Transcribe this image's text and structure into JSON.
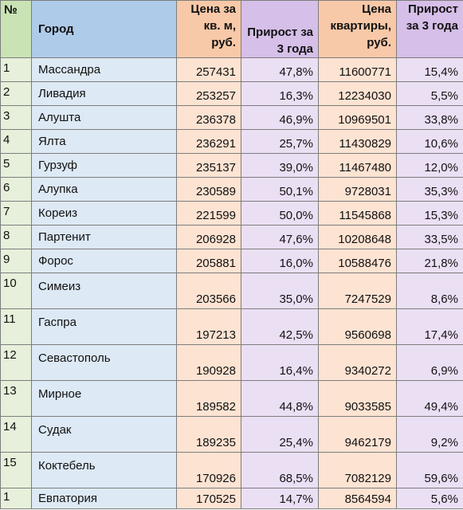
{
  "table": {
    "headers": {
      "num": "№",
      "city": "Город",
      "price": "Цена за кв. м, руб.",
      "growth": "Прирост за 3 года",
      "apartment": "Цена квартиры, руб.",
      "growth2": "Прирост за 3 года"
    },
    "rows": [
      {
        "num": "1",
        "city": "Массандра",
        "price": "257431",
        "growth": "47,8%",
        "apartment": "11600771",
        "growth2": "15,4%"
      },
      {
        "num": "2",
        "city": "Ливадия",
        "price": "253257",
        "growth": "16,3%",
        "apartment": "12234030",
        "growth2": "5,5%"
      },
      {
        "num": "3",
        "city": "Алушта",
        "price": "236378",
        "growth": "46,9%",
        "apartment": "10969501",
        "growth2": "33,8%"
      },
      {
        "num": "4",
        "city": "Ялта",
        "price": "236291",
        "growth": "25,7%",
        "apartment": "11430829",
        "growth2": "10,6%"
      },
      {
        "num": "5",
        "city": "Гурзуф",
        "price": "235137",
        "growth": "39,0%",
        "apartment": "11467480",
        "growth2": "12,0%"
      },
      {
        "num": "6",
        "city": "Алупка",
        "price": "230589",
        "growth": "50,1%",
        "apartment": "9728031",
        "growth2": "35,3%"
      },
      {
        "num": "7",
        "city": "Кореиз",
        "price": "221599",
        "growth": "50,0%",
        "apartment": "11545868",
        "growth2": "15,3%"
      },
      {
        "num": "8",
        "city": "Партенит",
        "price": "206928",
        "growth": "47,6%",
        "apartment": "10208648",
        "growth2": "33,5%"
      },
      {
        "num": "9",
        "city": "Форос",
        "price": "205881",
        "growth": "16,0%",
        "apartment": "10588476",
        "growth2": "21,8%"
      },
      {
        "num": "10",
        "city": "Симеиз",
        "price": "203566",
        "growth": "35,0%",
        "apartment": "7247529",
        "growth2": "8,6%"
      },
      {
        "num": "11",
        "city": "Гаспра",
        "price": "197213",
        "growth": "42,5%",
        "apartment": "9560698",
        "growth2": "17,4%"
      },
      {
        "num": "12",
        "city": "Севастополь",
        "price": "190928",
        "growth": "16,4%",
        "apartment": "9340272",
        "growth2": "6,9%"
      },
      {
        "num": "13",
        "city": "Мирное",
        "price": "189582",
        "growth": "44,8%",
        "apartment": "9033585",
        "growth2": "49,4%"
      },
      {
        "num": "14",
        "city": "Судак",
        "price": "189235",
        "growth": "25,4%",
        "apartment": "9462179",
        "growth2": "9,2%"
      },
      {
        "num": "15",
        "city": "Коктебель",
        "price": "170926",
        "growth": "68,5%",
        "apartment": "7082129",
        "growth2": "59,6%"
      },
      {
        "num": "1",
        "city": "Евпатория",
        "price": "170525",
        "growth": "14,7%",
        "apartment": "8564594",
        "growth2": "5,6%"
      }
    ]
  }
}
